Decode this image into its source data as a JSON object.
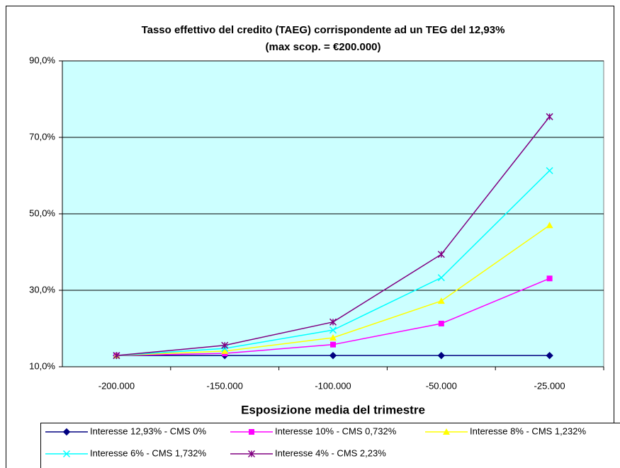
{
  "chart_data": {
    "type": "line",
    "title": "Tasso effettivo del credito (TAEG) corrispondente ad un TEG del 12,93%",
    "subtitle": "(max scop. = €200.000)",
    "x_label": "Esposizione media del trimestre",
    "categories": [
      "-200.000",
      "-150.000",
      "-100.000",
      "-50.000",
      "-25.000"
    ],
    "ylim": [
      10,
      90
    ],
    "yticks": [
      {
        "value": 10,
        "label": "10,0%"
      },
      {
        "value": 30,
        "label": "30,0%"
      },
      {
        "value": 50,
        "label": "50,0%"
      },
      {
        "value": 70,
        "label": "70,0%"
      },
      {
        "value": 90,
        "label": "90,0%"
      }
    ],
    "grid": true,
    "legend": "bottom",
    "series": [
      {
        "name": "Interesse 12,93% - CMS  0%",
        "color": "#000080",
        "marker": "diamond",
        "values": [
          12.93,
          12.93,
          12.93,
          12.93,
          12.93
        ]
      },
      {
        "name": "Interesse 10% - CMS 0,732%",
        "color": "#ff00ff",
        "marker": "square",
        "values": [
          12.93,
          13.5,
          15.8,
          21.3,
          33.1
        ]
      },
      {
        "name": "Interesse 8% - CMS 1,232%",
        "color": "#ffff00",
        "marker": "triangle",
        "values": [
          12.93,
          14.1,
          17.6,
          27.2,
          47.0
        ]
      },
      {
        "name": "Interesse 6% - CMS 1,732%",
        "color": "#00ffff",
        "marker": "x",
        "values": [
          12.93,
          14.8,
          19.6,
          33.3,
          61.3
        ]
      },
      {
        "name": "Interesse 4% - CMS 2,23%",
        "color": "#800080",
        "marker": "star",
        "values": [
          12.93,
          15.6,
          21.7,
          39.4,
          75.4
        ]
      }
    ]
  }
}
